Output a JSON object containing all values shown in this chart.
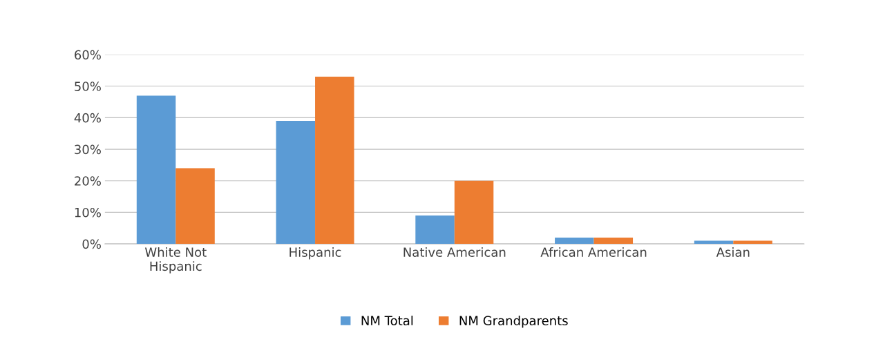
{
  "chart_data": {
    "type": "bar",
    "categories": [
      "White Not\nHispanic",
      "Hispanic",
      "Native American",
      "African American",
      "Asian"
    ],
    "series": [
      {
        "name": "NM Total",
        "color": "#5b9bd5",
        "values": [
          47,
          39,
          9,
          2,
          1
        ]
      },
      {
        "name": "NM Grandparents",
        "color": "#ed7d31",
        "values": [
          24,
          53,
          20,
          2,
          1
        ]
      }
    ],
    "ylim": [
      0,
      60
    ],
    "yticks": [
      {
        "value": 0,
        "label": "0%"
      },
      {
        "value": 10,
        "label": "10%"
      },
      {
        "value": 20,
        "label": "20%"
      },
      {
        "value": 30,
        "label": "30%"
      },
      {
        "value": 40,
        "label": "40%"
      },
      {
        "value": 50,
        "label": "50%"
      },
      {
        "value": 60,
        "label": "60%"
      }
    ],
    "grid": "y",
    "legend": "bottom"
  }
}
